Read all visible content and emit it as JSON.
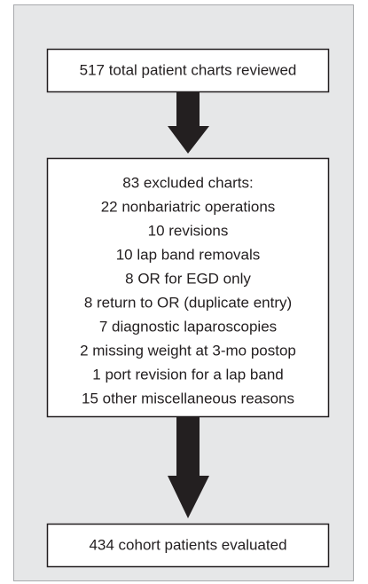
{
  "nodes": [
    {
      "lines": [
        "517 total patient charts reviewed"
      ]
    },
    {
      "lines": [
        "83 excluded charts:",
        "22 nonbariatric operations",
        "10 revisions",
        "10 lap band removals",
        "8 OR for EGD only",
        "8 return to OR (duplicate entry)",
        "7 diagnostic laparoscopies",
        "2 missing weight at 3-mo postop",
        "1 port revision for a lap band",
        "15 other miscellaneous reasons"
      ]
    },
    {
      "lines": [
        "434 cohort patients evaluated"
      ]
    }
  ]
}
